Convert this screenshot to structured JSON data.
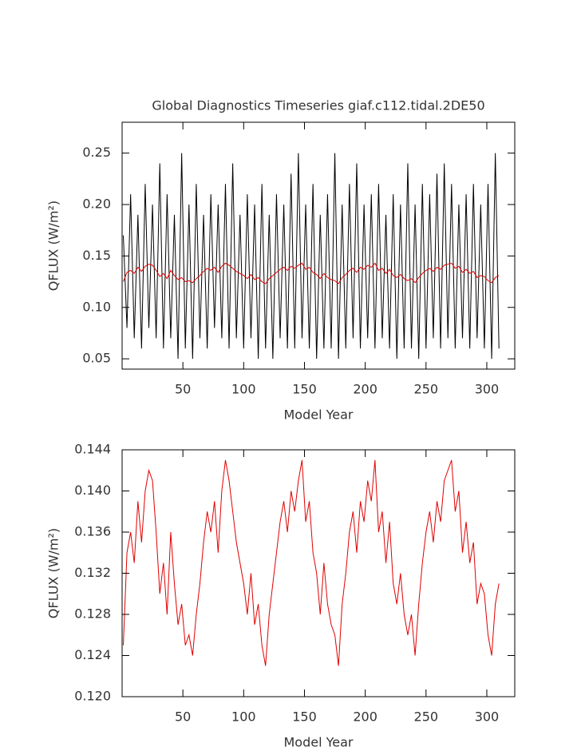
{
  "chart_data": [
    {
      "type": "line",
      "title": "Global Diagnostics Timeseries giaf.c112.tidal.2DE50",
      "xlabel": "Model Year",
      "ylabel": "QFLUX (W/m²)",
      "x": [
        1,
        4,
        7,
        10,
        13,
        16,
        19,
        22,
        25,
        28,
        31,
        34,
        37,
        40,
        43,
        46,
        49,
        52,
        55,
        58,
        61,
        64,
        67,
        70,
        73,
        76,
        79,
        82,
        85,
        88,
        91,
        94,
        97,
        100,
        103,
        106,
        109,
        112,
        115,
        118,
        121,
        124,
        127,
        130,
        133,
        136,
        139,
        142,
        145,
        148,
        151,
        154,
        157,
        160,
        163,
        166,
        169,
        172,
        175,
        178,
        181,
        184,
        187,
        190,
        193,
        196,
        199,
        202,
        205,
        208,
        211,
        214,
        217,
        220,
        223,
        226,
        229,
        232,
        235,
        238,
        241,
        244,
        247,
        250,
        253,
        256,
        259,
        262,
        265,
        268,
        271,
        274,
        277,
        280,
        283,
        286,
        289,
        292,
        295,
        298,
        301,
        304,
        307,
        310
      ],
      "xlim": [
        0,
        323
      ],
      "xticks": [
        50,
        100,
        150,
        200,
        250,
        300
      ],
      "ylim": [
        0.04,
        0.28
      ],
      "yticks": [
        0.05,
        {
          "value": 0.1,
          "label": "0.10"
        },
        0.15,
        {
          "value": 0.2,
          "label": "0.20"
        },
        0.25
      ],
      "series": [
        {
          "color": "#000000",
          "values": [
            0.17,
            0.08,
            0.21,
            0.07,
            0.19,
            0.06,
            0.22,
            0.08,
            0.2,
            0.07,
            0.24,
            0.06,
            0.21,
            0.07,
            0.19,
            0.05,
            0.25,
            0.06,
            0.2,
            0.05,
            0.22,
            0.07,
            0.19,
            0.06,
            0.21,
            0.08,
            0.2,
            0.07,
            0.22,
            0.06,
            0.24,
            0.07,
            0.19,
            0.06,
            0.21,
            0.07,
            0.2,
            0.05,
            0.22,
            0.06,
            0.19,
            0.05,
            0.21,
            0.07,
            0.2,
            0.06,
            0.23,
            0.06,
            0.25,
            0.07,
            0.2,
            0.06,
            0.22,
            0.05,
            0.19,
            0.06,
            0.21,
            0.06,
            0.25,
            0.05,
            0.2,
            0.06,
            0.22,
            0.07,
            0.24,
            0.06,
            0.2,
            0.07,
            0.21,
            0.06,
            0.22,
            0.07,
            0.19,
            0.06,
            0.21,
            0.05,
            0.2,
            0.06,
            0.24,
            0.06,
            0.2,
            0.05,
            0.22,
            0.06,
            0.21,
            0.07,
            0.23,
            0.06,
            0.24,
            0.07,
            0.22,
            0.06,
            0.2,
            0.07,
            0.21,
            0.06,
            0.22,
            0.07,
            0.2,
            0.06,
            0.22,
            0.05,
            0.25,
            0.06
          ]
        },
        {
          "color": "#e00000",
          "values": [
            0.125,
            0.134,
            0.136,
            0.133,
            0.139,
            0.135,
            0.14,
            0.142,
            0.141,
            0.136,
            0.13,
            0.133,
            0.128,
            0.136,
            0.131,
            0.127,
            0.129,
            0.125,
            0.126,
            0.124,
            0.128,
            0.131,
            0.135,
            0.138,
            0.136,
            0.139,
            0.134,
            0.14,
            0.143,
            0.141,
            0.138,
            0.135,
            0.133,
            0.131,
            0.128,
            0.132,
            0.127,
            0.129,
            0.125,
            0.123,
            0.128,
            0.131,
            0.134,
            0.137,
            0.139,
            0.136,
            0.14,
            0.138,
            0.141,
            0.143,
            0.137,
            0.139,
            0.134,
            0.132,
            0.128,
            0.133,
            0.129,
            0.127,
            0.126,
            0.123,
            0.129,
            0.132,
            0.136,
            0.138,
            0.134,
            0.139,
            0.137,
            0.141,
            0.139,
            0.143,
            0.136,
            0.138,
            0.133,
            0.137,
            0.131,
            0.129,
            0.132,
            0.128,
            0.126,
            0.128,
            0.124,
            0.129,
            0.133,
            0.136,
            0.138,
            0.135,
            0.139,
            0.137,
            0.141,
            0.142,
            0.143,
            0.138,
            0.14,
            0.134,
            0.137,
            0.133,
            0.135,
            0.129,
            0.131,
            0.13,
            0.126,
            0.124,
            0.129,
            0.131
          ]
        }
      ]
    },
    {
      "type": "line",
      "xlabel": "Model Year",
      "ylabel": "QFLUX (W/m²)",
      "x": [
        1,
        4,
        7,
        10,
        13,
        16,
        19,
        22,
        25,
        28,
        31,
        34,
        37,
        40,
        43,
        46,
        49,
        52,
        55,
        58,
        61,
        64,
        67,
        70,
        73,
        76,
        79,
        82,
        85,
        88,
        91,
        94,
        97,
        100,
        103,
        106,
        109,
        112,
        115,
        118,
        121,
        124,
        127,
        130,
        133,
        136,
        139,
        142,
        145,
        148,
        151,
        154,
        157,
        160,
        163,
        166,
        169,
        172,
        175,
        178,
        181,
        184,
        187,
        190,
        193,
        196,
        199,
        202,
        205,
        208,
        211,
        214,
        217,
        220,
        223,
        226,
        229,
        232,
        235,
        238,
        241,
        244,
        247,
        250,
        253,
        256,
        259,
        262,
        265,
        268,
        271,
        274,
        277,
        280,
        283,
        286,
        289,
        292,
        295,
        298,
        301,
        304,
        307,
        310
      ],
      "xlim": [
        0,
        323
      ],
      "xticks": [
        50,
        100,
        150,
        200,
        250,
        300
      ],
      "ylim": [
        0.12,
        0.144
      ],
      "yticks": [
        {
          "value": 0.12,
          "label": "0.120"
        },
        0.124,
        0.128,
        0.132,
        0.136,
        {
          "value": 0.14,
          "label": "0.140"
        },
        0.144
      ],
      "series": [
        {
          "color": "#e00000",
          "values": [
            0.125,
            0.134,
            0.136,
            0.133,
            0.139,
            0.135,
            0.14,
            0.142,
            0.141,
            0.136,
            0.13,
            0.133,
            0.128,
            0.136,
            0.131,
            0.127,
            0.129,
            0.125,
            0.126,
            0.124,
            0.128,
            0.131,
            0.135,
            0.138,
            0.136,
            0.139,
            0.134,
            0.14,
            0.143,
            0.141,
            0.138,
            0.135,
            0.133,
            0.131,
            0.128,
            0.132,
            0.127,
            0.129,
            0.125,
            0.123,
            0.128,
            0.131,
            0.134,
            0.137,
            0.139,
            0.136,
            0.14,
            0.138,
            0.141,
            0.143,
            0.137,
            0.139,
            0.134,
            0.132,
            0.128,
            0.133,
            0.129,
            0.127,
            0.126,
            0.123,
            0.129,
            0.132,
            0.136,
            0.138,
            0.134,
            0.139,
            0.137,
            0.141,
            0.139,
            0.143,
            0.136,
            0.138,
            0.133,
            0.137,
            0.131,
            0.129,
            0.132,
            0.128,
            0.126,
            0.128,
            0.124,
            0.129,
            0.133,
            0.136,
            0.138,
            0.135,
            0.139,
            0.137,
            0.141,
            0.142,
            0.143,
            0.138,
            0.14,
            0.134,
            0.137,
            0.133,
            0.135,
            0.129,
            0.131,
            0.13,
            0.126,
            0.124,
            0.129,
            0.131
          ]
        }
      ]
    }
  ]
}
